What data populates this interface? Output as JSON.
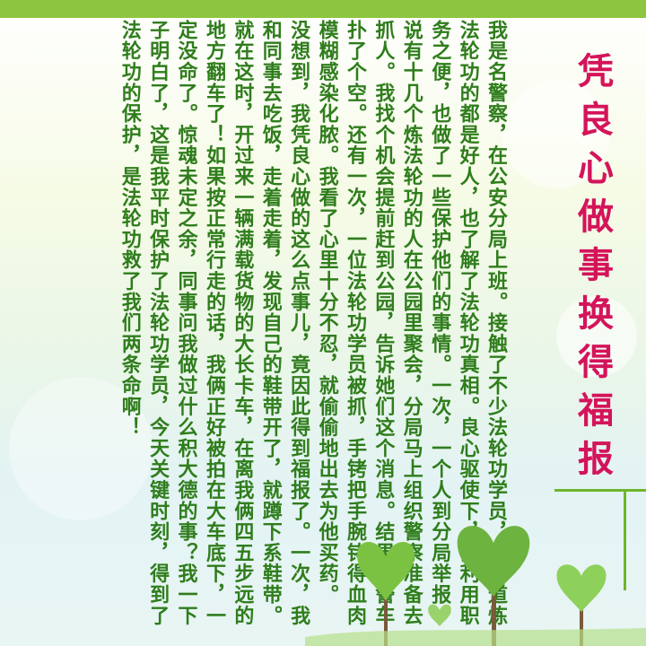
{
  "title": "凭良心做事换得福报",
  "paragraphs": [
    "我是名警察，在公安分局上班。接触了不少法轮功学员，我知道炼法轮功的都是好人，也了解了法轮功真相。良心驱使下，我利用职务之便，也做了一些保护他们的事情。一次，一个人到分局举报，说有十几个炼法轮功的人在公园里聚会，分局马上组织警察准备去抓人。我找个机会提前赶到公园，告诉她们这个消息。结果，警车扑了个空。还有一次，一位法轮功学员被抓，手铐把手腕铐得血肉模糊感染化脓。我看了心里十分不忍，就偷偷地出去为他买药。",
    "没想到，我凭良心做的这么点事儿，竟因此得到福报了。一次，我和同事去吃饭，走着走着，发现自己的鞋带开了，就蹲下系鞋带。就在这时，开过来一辆满载货物的大长卡车，在离我俩四五步远的地方翻车了！如果按正常行走的话，我俩正好被拍在大车底下，一定没命了。惊魂未定之余，同事问我做过什么积大德的事？我一下子明白了，这是我平时保护了法轮功学员，今天关键时刻，得到了法轮功的保护，是法轮功救了我们两条命啊！"
  ]
}
